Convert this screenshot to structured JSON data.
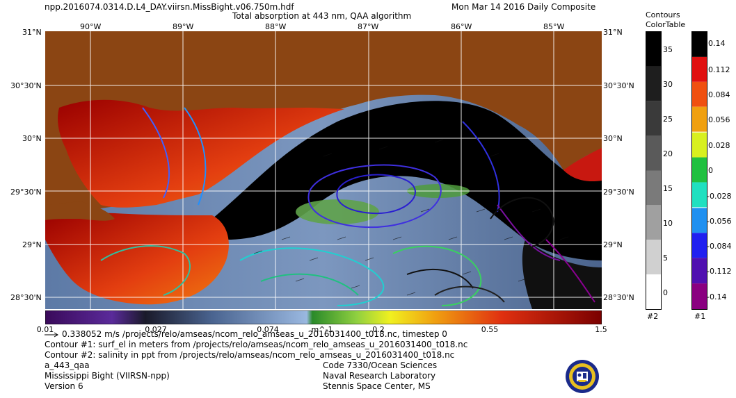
{
  "header": {
    "filename": "npp.2016074.0314.D.L4_DAY.viirsn.MissBight.v06.750m.hdf",
    "date": "Mon Mar 14 2016 Daily Composite",
    "product": "Total absorption at 443 nm, QAA algorithm"
  },
  "axes": {
    "lon_labels": [
      "90°W",
      "89°W",
      "88°W",
      "87°W",
      "86°W",
      "85°W"
    ],
    "lat_labels": [
      "31°N",
      "30°30'N",
      "30°N",
      "29°30'N",
      "29°N",
      "28°30'N"
    ]
  },
  "colorbar": {
    "ticks": [
      "0.01",
      "0.027",
      "0.074",
      "0.2",
      "0.55",
      "1.5"
    ],
    "unit": "m^-1"
  },
  "contours_legend": {
    "title_line1": "Contours",
    "title_line2": "ColorTable",
    "bar2_labels": [
      "35",
      "30",
      "25",
      "20",
      "15",
      "10",
      "5",
      "0"
    ],
    "bar2_id": "#2",
    "bar1_labels": [
      "0.14",
      "0.112",
      "0.084",
      "0.056",
      "0.028",
      "0",
      "-0.028",
      "-0.056",
      "-0.084",
      "-0.112",
      "-0.14"
    ],
    "bar1_id": "#1"
  },
  "footer": {
    "vector_line": "0.338052 m/s /projects/relo/amseas/ncom_relo_amseas_u_2016031400_t018.nc, timestep 0",
    "contour1_line": "Contour #1: surf_el in meters from /projects/relo/amseas/ncom_relo_amseas_u_2016031400_t018.nc",
    "contour2_line": "Contour #2: salinity in ppt from /projects/relo/amseas/ncom_relo_amseas_u_2016031400_t018.nc",
    "var_name": "a_443_qaa",
    "region": "Mississippi Bight (VIIRSN-npp)",
    "version": "Version 6",
    "org_code": "Code 7330/Ocean Sciences",
    "org_name": "Naval Research Laboratory",
    "org_place": "Stennis Space Center, MS"
  },
  "colors": {
    "land": "#8b4513",
    "deep_water": "#000000",
    "offshore_blue": "#6e89b0",
    "coastal_red": "#d22a10"
  }
}
